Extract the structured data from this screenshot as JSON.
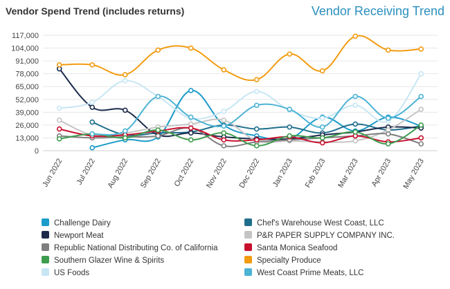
{
  "header": {
    "title": "Vendor Spend Trend (includes returns)",
    "subtitle": "Vendor Receiving Trend"
  },
  "chart_data": {
    "type": "line",
    "title": "Vendor Spend Trend (includes returns)",
    "xlabel": "",
    "ylabel": "",
    "ylim": [
      0,
      117000
    ],
    "yticks": [
      0,
      13000,
      26000,
      39000,
      52000,
      65000,
      78000,
      91000,
      104000,
      117000
    ],
    "ytick_labels": [
      "0",
      "13,000",
      "26,000",
      "39,000",
      "52,000",
      "65,000",
      "78,000",
      "91,000",
      "104,000",
      "117,000"
    ],
    "categories": [
      "Jun 2022",
      "Jul 2022",
      "Aug 2022",
      "Sep 2022",
      "Oct 2022",
      "Nov 2022",
      "Dec 2022",
      "Jan 2023",
      "Feb 2023",
      "Mar 2023",
      "Apr 2023",
      "May 2023"
    ],
    "grid": true,
    "legend_position": "bottom",
    "series": [
      {
        "name": "Challenge Dairy",
        "color": "#1a9bc9",
        "values": [
          null,
          3000,
          11000,
          14000,
          61000,
          26000,
          15000,
          12000,
          34000,
          20000,
          34000,
          25000
        ]
      },
      {
        "name": "Chef's Warehouse West Coast, LLC",
        "color": "#1f6e8c",
        "values": [
          null,
          29000,
          16000,
          18000,
          19000,
          26000,
          22000,
          24000,
          18000,
          27000,
          21000,
          25000
        ]
      },
      {
        "name": "Newport Meat",
        "color": "#1b2a4a",
        "values": [
          83000,
          44000,
          41000,
          16000,
          18000,
          14000,
          12000,
          12000,
          16000,
          19000,
          24000,
          23000
        ]
      },
      {
        "name": "P&R PAPER SUPPLY COMPANY INC.",
        "color": "#c4c4c4",
        "values": [
          31000,
          16000,
          18000,
          24000,
          27000,
          31000,
          10000,
          10000,
          9000,
          10000,
          21000,
          42000
        ]
      },
      {
        "name": "Republic National Distributing Co. of California",
        "color": "#7f7f7f",
        "values": [
          15000,
          13000,
          14000,
          15000,
          23000,
          5000,
          9000,
          11000,
          13000,
          15000,
          17000,
          7000
        ]
      },
      {
        "name": "Santa Monica Seafood",
        "color": "#c8102e",
        "values": [
          22000,
          15000,
          16000,
          20000,
          23000,
          11000,
          11000,
          14000,
          8000,
          15000,
          9000,
          13000
        ]
      },
      {
        "name": "Southern Glazer Wine & Spirits",
        "color": "#3e9c4e",
        "values": [
          12000,
          17000,
          13000,
          21000,
          11000,
          18000,
          5000,
          15000,
          13000,
          19000,
          7000,
          26000
        ]
      },
      {
        "name": "Specialty Produce",
        "color": "#f29b10",
        "values": [
          87000,
          87000,
          77000,
          102000,
          104000,
          82000,
          72000,
          98000,
          81000,
          116000,
          102000,
          103000
        ]
      },
      {
        "name": "US Foods",
        "color": "#c7e6f4",
        "values": [
          43000,
          49000,
          71000,
          55000,
          33000,
          40000,
          60000,
          41000,
          33000,
          46000,
          30000,
          78000
        ]
      },
      {
        "name": "West Coast Prime Meats, LLC",
        "color": "#4cb3d4",
        "values": [
          null,
          17000,
          20000,
          55000,
          34000,
          25000,
          46000,
          42000,
          24000,
          55000,
          33000,
          55000
        ]
      }
    ]
  }
}
